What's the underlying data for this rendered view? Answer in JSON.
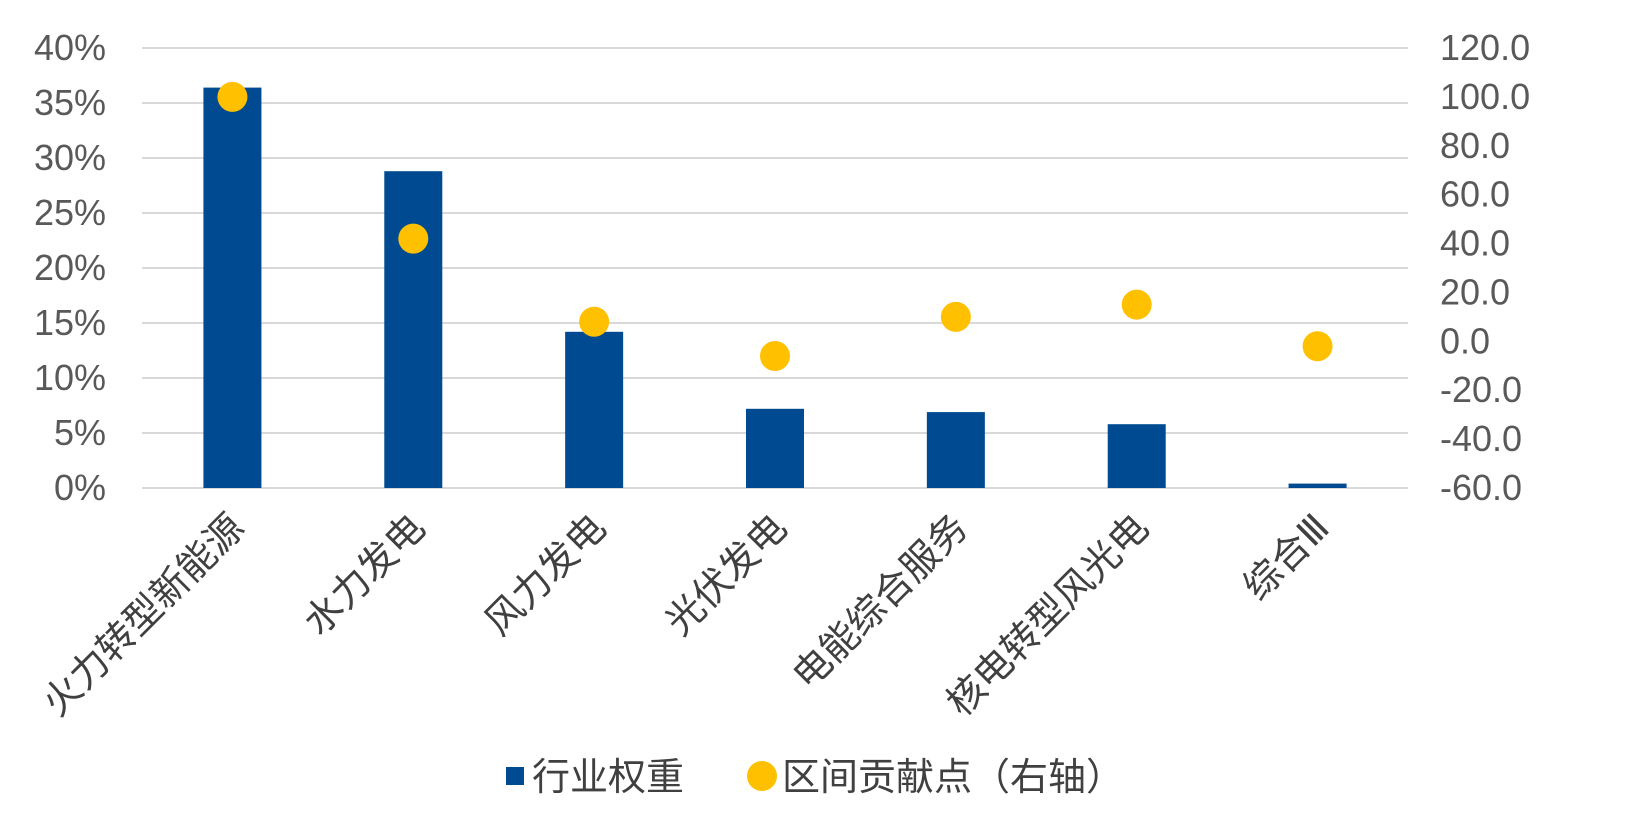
{
  "chart_data": {
    "type": "bar",
    "categories": [
      "火力转型新能源",
      "水力发电",
      "风力发电",
      "光伏发电",
      "电能综合服务",
      "核电转型风光电",
      "综合Ⅲ"
    ],
    "series": [
      {
        "name": "行业权重",
        "type": "bar",
        "axis": "left",
        "color": "#004a91",
        "values": [
          36.4,
          28.8,
          14.2,
          7.2,
          6.9,
          5.8,
          0.4
        ]
      },
      {
        "name": "区间贡献点（右轴）",
        "type": "scatter",
        "axis": "right",
        "color": "#ffc000",
        "values": [
          100.0,
          42.0,
          8.0,
          -6.0,
          10.0,
          15.0,
          -2.0
        ]
      }
    ],
    "y_left": {
      "min": 0,
      "max": 40,
      "step": 5,
      "tick_labels": [
        "0%",
        "5%",
        "10%",
        "15%",
        "20%",
        "25%",
        "30%",
        "35%",
        "40%"
      ]
    },
    "y_right": {
      "min": -60,
      "max": 120,
      "step": 20,
      "tick_labels": [
        "-60.0",
        "-40.0",
        "-20.0",
        "0.0",
        "20.0",
        "40.0",
        "60.0",
        "80.0",
        "100.0",
        "120.0"
      ]
    },
    "grid": true,
    "legend_position": "bottom"
  }
}
